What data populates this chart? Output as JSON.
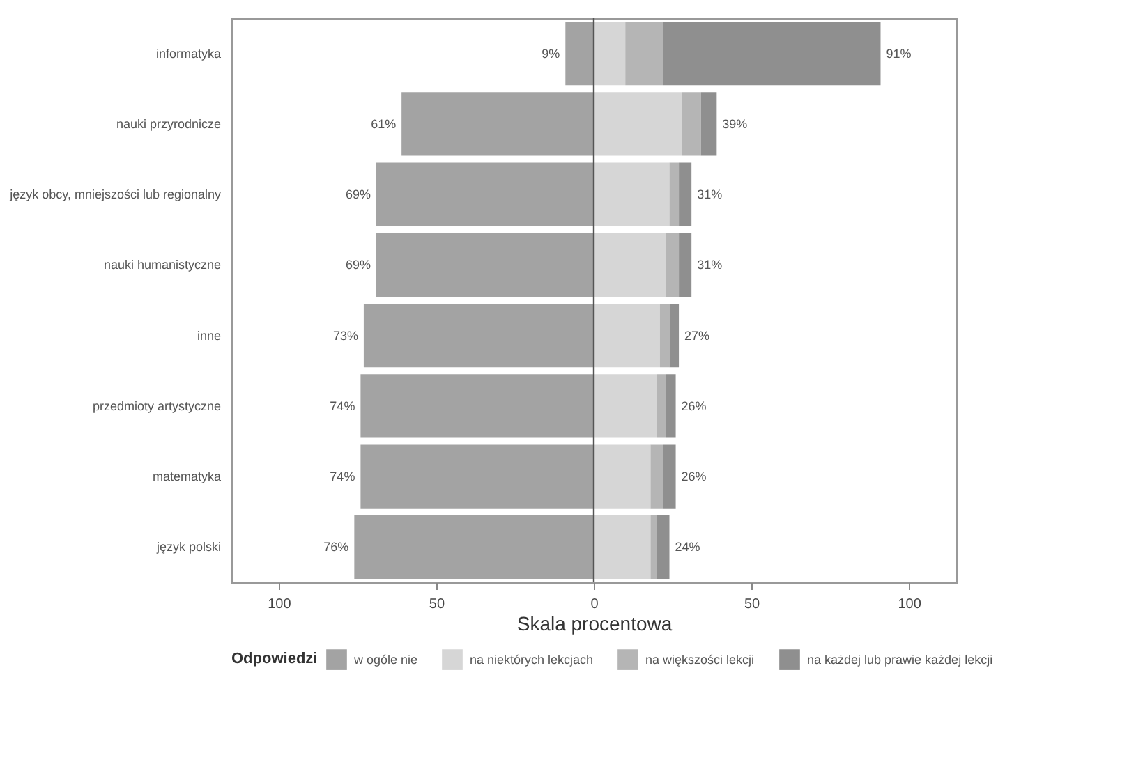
{
  "chart_data": {
    "type": "bar",
    "orientation": "horizontal",
    "stacked": true,
    "xlabel": "Skala procentowa",
    "legend_title": "Odpowiedzi",
    "legend": "bottom",
    "grid": false,
    "categories": [
      "informatyka",
      "nauki przyrodnicze",
      "język obcy, mniejszości lub regionalny",
      "nauki humanistyczne",
      "inne",
      "przedmioty artystyczne",
      "matematyka",
      "język polski"
    ],
    "xlim": [
      -115,
      115
    ],
    "xticks": [
      {
        "value": -100,
        "label": "100"
      },
      {
        "value": -50,
        "label": "50"
      },
      0,
      50,
      100
    ],
    "series": [
      {
        "name": "w ogóle nie",
        "color": "#a3a3a3",
        "values": [
          -9,
          -61,
          -69,
          -69,
          -73,
          -74,
          -74,
          -76
        ]
      },
      {
        "name": "na niektórych lekcjach",
        "color": "#d6d6d6",
        "values": [
          10,
          28,
          24,
          23,
          21,
          20,
          18,
          18
        ]
      },
      {
        "name": "na większości lekcji",
        "color": "#b5b5b5",
        "values": [
          12,
          6,
          3,
          4,
          3,
          3,
          4,
          2
        ]
      },
      {
        "name": "na każdej lub prawie każdej lekcji",
        "color": "#8f8f8f",
        "values": [
          69,
          5,
          4,
          4,
          3,
          3,
          4,
          4
        ]
      }
    ],
    "annotations": [
      {
        "text": "9%",
        "x": -9,
        "y": "informatyka"
      },
      {
        "text": "61%",
        "x": -61,
        "y": "nauki przyrodnicze"
      },
      {
        "text": "69%",
        "x": -69,
        "y": "język obcy, mniejszości lub regionalny"
      },
      {
        "text": "69%",
        "x": -69,
        "y": "nauki humanistyczne"
      },
      {
        "text": "73%",
        "x": -73,
        "y": "inne"
      },
      {
        "text": "74%",
        "x": -74,
        "y": "przedmioty artystyczne"
      },
      {
        "text": "74%",
        "x": -74,
        "y": "matematyka"
      },
      {
        "text": "76%",
        "x": -76,
        "y": "język polski"
      },
      {
        "text": "91%",
        "x": 91,
        "y": "informatyka"
      },
      {
        "text": "39%",
        "x": 39,
        "y": "nauki przyrodnicze"
      },
      {
        "text": "31%",
        "x": 31,
        "y": "język obcy, mniejszości lub regionalny"
      },
      {
        "text": "31%",
        "x": 31,
        "y": "nauki humanistyczne"
      },
      {
        "text": "27%",
        "x": 27,
        "y": "inne"
      },
      {
        "text": "26%",
        "x": 26,
        "y": "przedmioty artystyczne"
      },
      {
        "text": "26%",
        "x": 26,
        "y": "matematyka"
      },
      {
        "text": "24%",
        "x": 24,
        "y": "język polski"
      }
    ],
    "ref_lines": [
      {
        "axis": "x",
        "value": 0,
        "color": "#555555"
      }
    ]
  }
}
